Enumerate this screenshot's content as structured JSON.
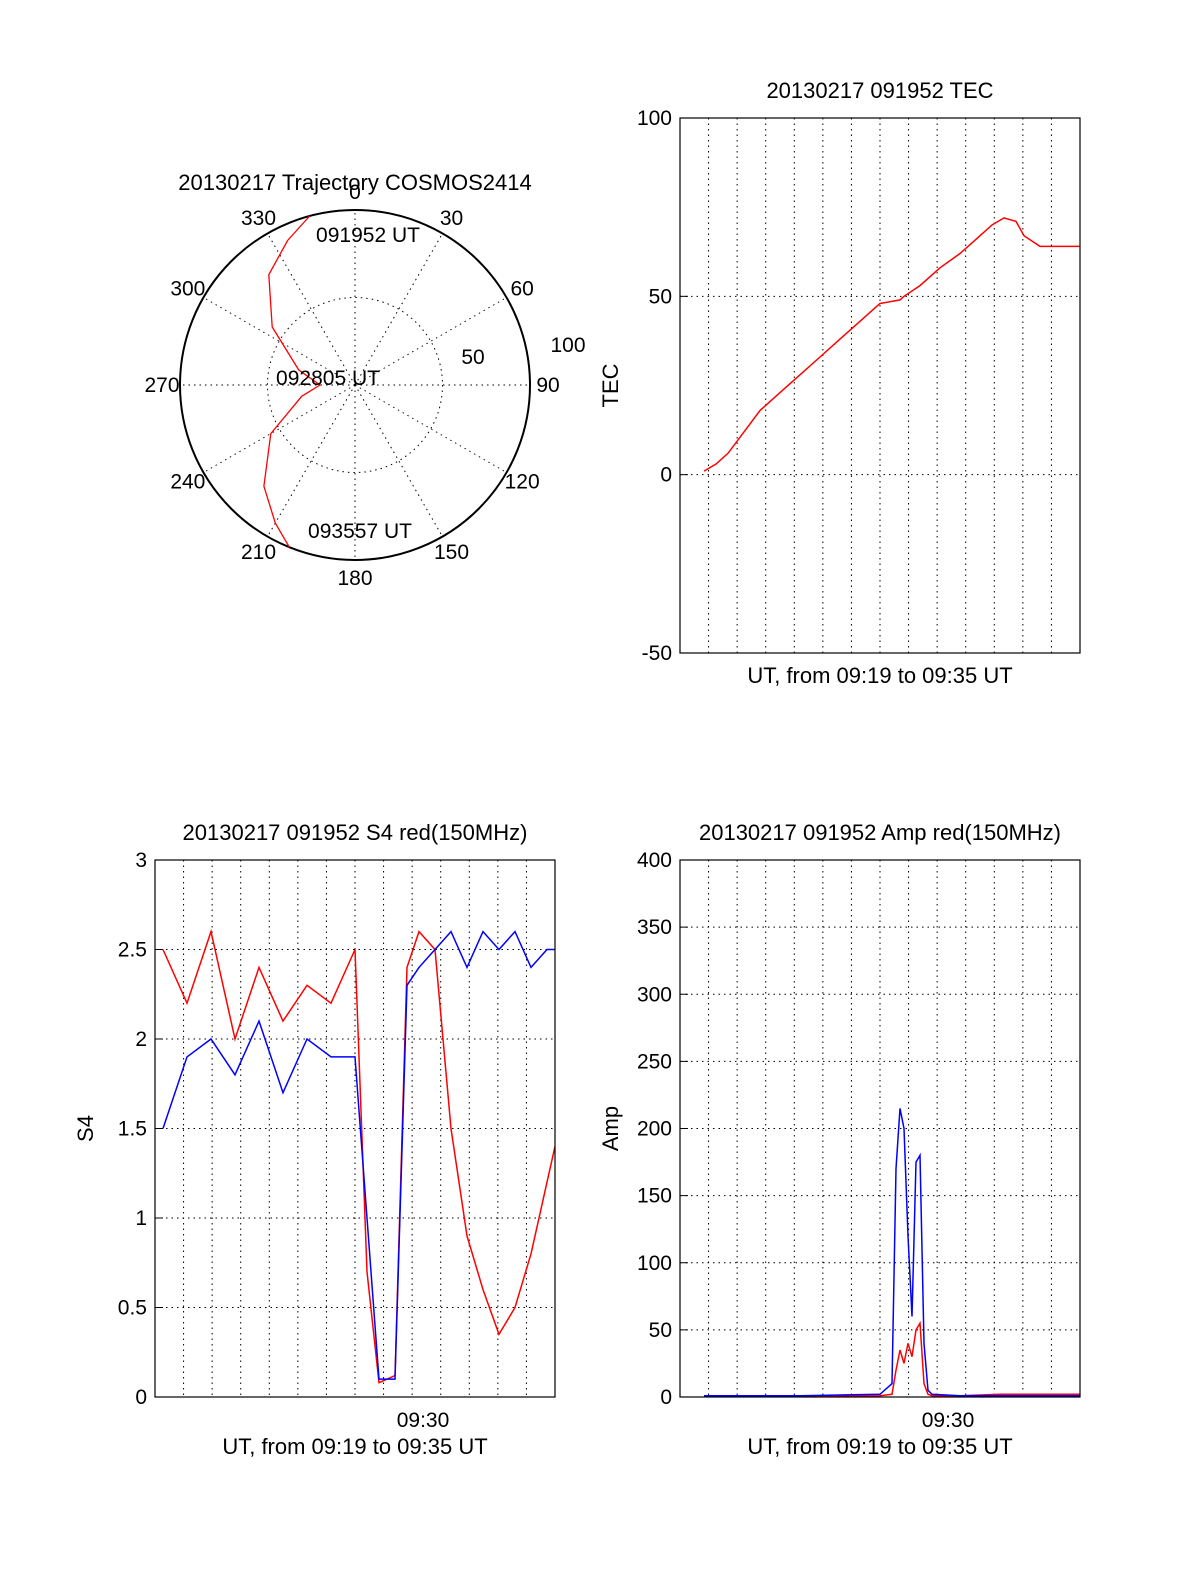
{
  "chart_data": [
    {
      "type": "polar",
      "title": "20130217 Trajectory COSMOS2414",
      "azimuth_labels": [
        "0",
        "30",
        "60",
        "90",
        "120",
        "150",
        "180",
        "210",
        "240",
        "270",
        "300",
        "330"
      ],
      "azimuth_degrees": [
        0,
        30,
        60,
        90,
        120,
        150,
        180,
        210,
        240,
        270,
        300,
        330
      ],
      "radial_labels": [
        "50",
        "100"
      ],
      "radial_values": [
        50,
        100
      ],
      "grid": true,
      "annotations": [
        {
          "text": "091952 UT",
          "azimuth": 345,
          "elevation": 3
        },
        {
          "text": "092805 UT",
          "azimuth": 270,
          "elevation": 80
        },
        {
          "text": "093557 UT",
          "azimuth": 200,
          "elevation": 0
        }
      ],
      "series": [
        {
          "color": "#ff0000",
          "points": [
            [
              345,
              0
            ],
            [
              335,
              8
            ],
            [
              322,
              18
            ],
            [
              305,
              38
            ],
            [
              285,
              60
            ],
            [
              270,
              72
            ],
            [
              258,
              62
            ],
            [
              240,
              40
            ],
            [
              222,
              20
            ],
            [
              210,
              8
            ],
            [
              202,
              0
            ]
          ]
        }
      ]
    },
    {
      "type": "line",
      "title": "20130217 091952 TEC",
      "xlabel": "UT, from 09:19 to 09:35 UT",
      "ylabel": "TEC",
      "xlim": [
        0,
        1
      ],
      "ylim": [
        -50,
        100
      ],
      "yticks": [
        "-50",
        "0",
        "50",
        "100"
      ],
      "ytick_values": [
        -50,
        0,
        50,
        100
      ],
      "x_grid_count": 13,
      "grid": true,
      "series": [
        {
          "color": "#ff0000",
          "x": [
            0.06,
            0.09,
            0.12,
            0.16,
            0.2,
            0.25,
            0.3,
            0.35,
            0.4,
            0.45,
            0.5,
            0.55,
            0.56,
            0.6,
            0.65,
            0.7,
            0.74,
            0.78,
            0.81,
            0.84,
            0.86,
            0.9,
            0.95,
            1.0
          ],
          "y": [
            1,
            3,
            6,
            12,
            18,
            23,
            28,
            33,
            38,
            43,
            48,
            49,
            50,
            53,
            58,
            62,
            66,
            70,
            72,
            71,
            67,
            64,
            64,
            64
          ]
        }
      ]
    },
    {
      "type": "line",
      "title": "20130217 091952 S4 red(150MHz)",
      "xlabel": "UT, from 09:19 to 09:35 UT",
      "ylabel": "S4",
      "xticks": [
        "09:30"
      ],
      "xtick_positions": [
        0.67
      ],
      "ylim": [
        0,
        3
      ],
      "yticks": [
        "0",
        "0.5",
        "1",
        "1.5",
        "2",
        "2.5",
        "3"
      ],
      "ytick_values": [
        0,
        0.5,
        1,
        1.5,
        2,
        2.5,
        3
      ],
      "grid": true,
      "series": [
        {
          "color": "#ff0000",
          "x": [
            0.02,
            0.08,
            0.14,
            0.2,
            0.26,
            0.32,
            0.38,
            0.44,
            0.5,
            0.53,
            0.56,
            0.6,
            0.63,
            0.66,
            0.7,
            0.74,
            0.78,
            0.82,
            0.86,
            0.9,
            0.94,
            0.98,
            1.0
          ],
          "y": [
            2.5,
            2.2,
            2.6,
            2.0,
            2.4,
            2.1,
            2.3,
            2.2,
            2.5,
            0.7,
            0.08,
            0.12,
            2.4,
            2.6,
            2.5,
            1.5,
            0.9,
            0.6,
            0.35,
            0.5,
            0.8,
            1.2,
            1.4
          ]
        },
        {
          "color": "#0000ff",
          "x": [
            0.02,
            0.08,
            0.14,
            0.2,
            0.26,
            0.32,
            0.38,
            0.44,
            0.5,
            0.53,
            0.56,
            0.6,
            0.63,
            0.66,
            0.7,
            0.74,
            0.78,
            0.82,
            0.86,
            0.9,
            0.94,
            0.98,
            1.0
          ],
          "y": [
            1.5,
            1.9,
            2.0,
            1.8,
            2.1,
            1.7,
            2.0,
            1.9,
            1.9,
            1.0,
            0.1,
            0.1,
            2.3,
            2.4,
            2.5,
            2.6,
            2.4,
            2.6,
            2.5,
            2.6,
            2.4,
            2.5,
            2.5
          ]
        }
      ]
    },
    {
      "type": "line",
      "title": "20130217 091952 Amp red(150MHz)",
      "xlabel": "UT, from 09:19 to 09:35 UT",
      "ylabel": "Amp",
      "xticks": [
        "09:30"
      ],
      "xtick_positions": [
        0.67
      ],
      "ylim": [
        0,
        400
      ],
      "yticks": [
        "0",
        "50",
        "100",
        "150",
        "200",
        "250",
        "300",
        "350",
        "400"
      ],
      "ytick_values": [
        0,
        50,
        100,
        150,
        200,
        250,
        300,
        350,
        400
      ],
      "grid": true,
      "series": [
        {
          "color": "#ff0000",
          "x": [
            0.06,
            0.5,
            0.53,
            0.54,
            0.55,
            0.56,
            0.57,
            0.58,
            0.59,
            0.6,
            0.61,
            0.62,
            0.63,
            0.7,
            0.8,
            0.9,
            1.0
          ],
          "y": [
            0,
            1,
            2,
            20,
            35,
            25,
            40,
            30,
            50,
            55,
            10,
            2,
            1,
            1,
            2,
            2,
            2
          ]
        },
        {
          "color": "#0000ff",
          "x": [
            0.06,
            0.3,
            0.5,
            0.53,
            0.54,
            0.55,
            0.56,
            0.57,
            0.58,
            0.59,
            0.6,
            0.61,
            0.62,
            0.63,
            0.7,
            0.8,
            0.9,
            1.0
          ],
          "y": [
            1,
            1,
            2,
            10,
            170,
            215,
            200,
            120,
            60,
            175,
            180,
            40,
            5,
            2,
            1,
            1,
            1,
            1
          ]
        }
      ]
    }
  ]
}
